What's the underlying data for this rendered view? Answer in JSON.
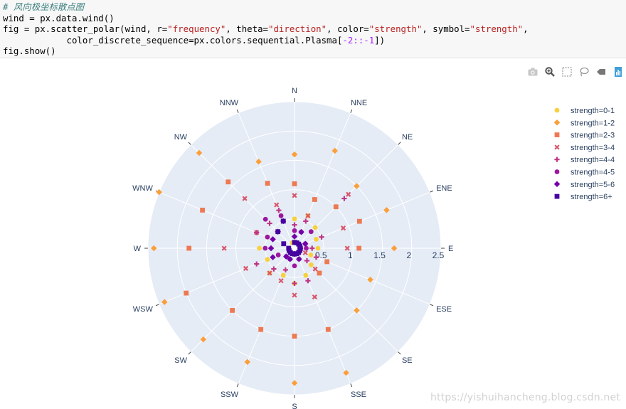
{
  "code": {
    "comment": "# 风向极坐标散点图",
    "line1": "wind = px.data.wind()",
    "line2_parts": [
      "fig = px.scatter_polar(wind, r=",
      "\"frequency\"",
      ", theta=",
      "\"direction\"",
      ", color=",
      "\"strength\"",
      ", symbol=",
      "\"strength\"",
      ","
    ],
    "line3_parts": [
      "            color_discrete_sequence=px.colors.sequential.Plasma[",
      "-2::-1",
      "])"
    ],
    "line4": "fig.show()"
  },
  "modebar": [
    "camera-icon",
    "zoom-icon",
    "select-box-icon",
    "lasso-icon",
    "reset-icon",
    "plotly-logo-icon"
  ],
  "watermark": "https://yishuihancheng.blog.csdn.net",
  "chart_data": {
    "type": "scatter",
    "polar": true,
    "title": "",
    "radial_axis": {
      "range": [
        0,
        2.5
      ],
      "tick_labels": [
        "0.5",
        "1",
        "1.5",
        "2",
        "2.5"
      ],
      "tick_values": [
        0.5,
        1,
        1.5,
        2,
        2.5
      ]
    },
    "angular_axis": {
      "direction": "clockwise",
      "rotation": "N at top",
      "categories": [
        "N",
        "NNE",
        "NE",
        "ENE",
        "E",
        "ESE",
        "SE",
        "SSE",
        "S",
        "SSW",
        "SW",
        "WSW",
        "W",
        "WNW",
        "NW",
        "NNW"
      ]
    },
    "legend_position": "top-right",
    "series": [
      {
        "name": "strength=0-1",
        "color": "#f7d13c",
        "symbol": "circle",
        "r": [
          0.5,
          0.6,
          0.5,
          0.4,
          0.4,
          0.3,
          0.4,
          0.5,
          0.6,
          0.5,
          0.6,
          0.5,
          0.6,
          0.5,
          0.4,
          0.1
        ]
      },
      {
        "name": "strength=1-2",
        "color": "#fb9f3a",
        "symbol": "diamond",
        "r": [
          1.6,
          1.8,
          1.5,
          1.7,
          1.7,
          1.4,
          1.5,
          2.3,
          2.3,
          2.1,
          2.2,
          2.4,
          2.4,
          2.5,
          2.3,
          1.6
        ]
      },
      {
        "name": "strength=2-3",
        "color": "#ed7953",
        "symbol": "square",
        "r": [
          1.1,
          0.9,
          1.0,
          1.2,
          1.1,
          0.6,
          0.6,
          1.5,
          1.5,
          1.5,
          1.5,
          2.0,
          1.8,
          1.7,
          1.6,
          1.2
        ]
      },
      {
        "name": "strength=3-4",
        "color": "#d8576b",
        "symbol": "x",
        "r": [
          0.9,
          0.6,
          1.3,
          0.9,
          0.9,
          0.2,
          0.5,
          0.9,
          0.8,
          0.6,
          0.6,
          0.9,
          1.2,
          0.7,
          1.2,
          0.8
        ]
      },
      {
        "name": "strength=4-4",
        "color": "#bd3786",
        "symbol": "cross",
        "r": [
          0.4,
          0.5,
          1.2,
          0.5,
          0.3,
          0.4,
          0.3,
          0.6,
          0.6,
          0.4,
          0.5,
          0.7,
          0.4,
          0.7,
          0.6,
          0.7
        ]
      },
      {
        "name": "strength=4-5",
        "color": "#9c179e",
        "symbol": "circle",
        "r": [
          0.3,
          0.3,
          0.4,
          0.2,
          0.2,
          0.1,
          0.1,
          0.2,
          0.3,
          0.2,
          0.2,
          0.3,
          0.5,
          0.5,
          0.7,
          0.6
        ]
      },
      {
        "name": "strength=5-6",
        "color": "#7201a8",
        "symbol": "diamond",
        "r": [
          0.2,
          0.3,
          0.1,
          0.2,
          0.1,
          0.1,
          0.1,
          0.2,
          0.1,
          0.2,
          0.2,
          0.4,
          0.4,
          0.4,
          0.4,
          0.5
        ]
      },
      {
        "name": "strength=6+",
        "color": "#46039f",
        "symbol": "square",
        "r": [
          0.1,
          0.1,
          0.1,
          0.1,
          0.1,
          0.1,
          0.1,
          0.1,
          0.1,
          0.1,
          0.1,
          0.1,
          0.1,
          0.2,
          0.4,
          0.5
        ]
      }
    ]
  }
}
